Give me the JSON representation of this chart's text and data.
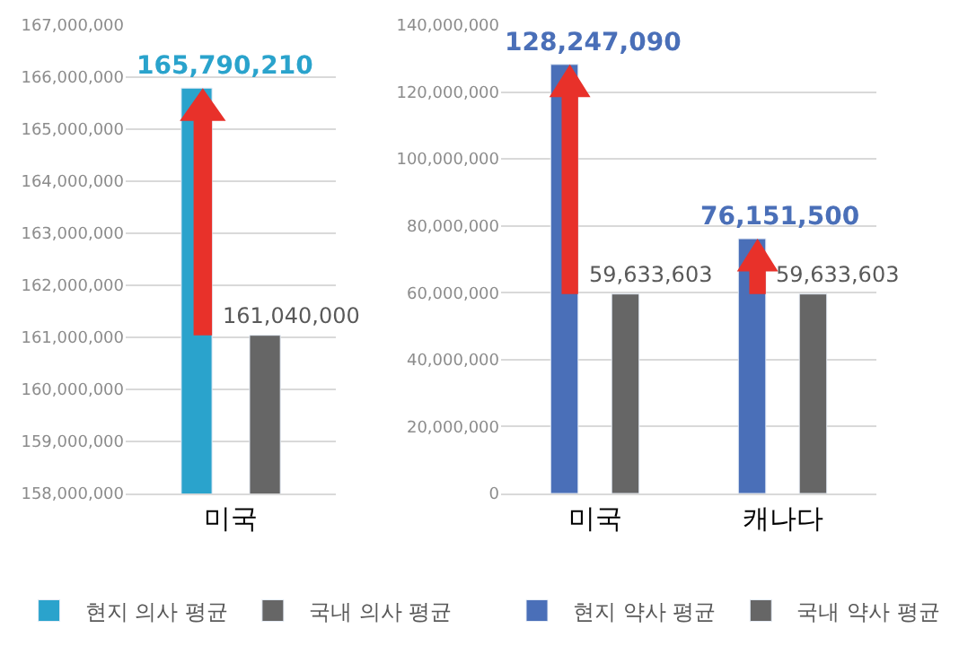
{
  "chart_data": [
    {
      "type": "bar",
      "categories": [
        "미국"
      ],
      "series": [
        {
          "name": "현지 의사 평균",
          "color": "#2aa3cc",
          "values": [
            165790210
          ],
          "value_labels": [
            "165,790,210"
          ]
        },
        {
          "name": "국내 의사 평균",
          "color": "#666666",
          "values": [
            161040000
          ],
          "value_labels": [
            "161,040,000"
          ]
        }
      ],
      "ylim": [
        158000000,
        167000000
      ],
      "yticks": [
        {
          "value": 158000000,
          "label": "158,000,000"
        },
        {
          "value": 159000000,
          "label": "159,000,000"
        },
        {
          "value": 160000000,
          "label": "160,000,000"
        },
        {
          "value": 161000000,
          "label": "161,000,000"
        },
        {
          "value": 162000000,
          "label": "162,000,000"
        },
        {
          "value": 163000000,
          "label": "163,000,000"
        },
        {
          "value": 164000000,
          "label": "164,000,000"
        },
        {
          "value": 165000000,
          "label": "165,000,000"
        },
        {
          "value": 166000000,
          "label": "166,000,000"
        },
        {
          "value": 167000000,
          "label": "167,000,000"
        }
      ],
      "grid": "y",
      "legend": "bottom"
    },
    {
      "type": "bar",
      "categories": [
        "미국",
        "캐나다"
      ],
      "series": [
        {
          "name": "현지 약사 평균",
          "color": "#4a6fb8",
          "values": [
            128247090,
            76151500
          ],
          "value_labels": [
            "128,247,090",
            "76,151,500"
          ]
        },
        {
          "name": "국내 약사 평균",
          "color": "#666666",
          "values": [
            59633603,
            59633603
          ],
          "value_labels": [
            "59,633,603",
            "59,633,603"
          ]
        }
      ],
      "ylim": [
        0,
        140000000
      ],
      "yticks": [
        0,
        {
          "value": 20000000,
          "label": "20,000,000"
        },
        {
          "value": 40000000,
          "label": "40,000,000"
        },
        {
          "value": 60000000,
          "label": "60,000,000"
        },
        {
          "value": 80000000,
          "label": "80,000,000"
        },
        {
          "value": 100000000,
          "label": "100,000,000"
        },
        {
          "value": 120000000,
          "label": "120,000,000"
        },
        {
          "value": 140000000,
          "label": "140,000,000"
        }
      ],
      "grid": "y",
      "legend": "bottom"
    }
  ]
}
